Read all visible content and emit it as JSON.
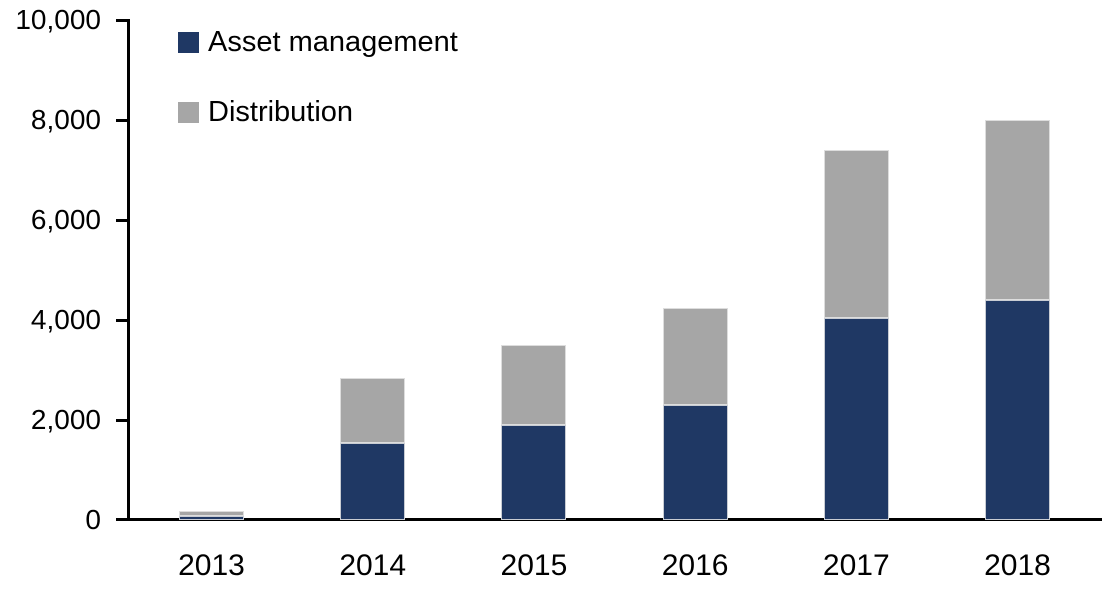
{
  "chart_data": {
    "type": "bar",
    "stacked": true,
    "title": "",
    "xlabel": "",
    "ylabel": "",
    "categories": [
      "2013",
      "2014",
      "2015",
      "2016",
      "2017",
      "2018"
    ],
    "series": [
      {
        "name": "Asset management",
        "color": "#1F3864",
        "values": [
          90,
          1550,
          1900,
          2300,
          4050,
          4400
        ]
      },
      {
        "name": "Distribution",
        "color": "#A6A6A6",
        "values": [
          100,
          1300,
          1600,
          1950,
          3350,
          3600
        ]
      }
    ],
    "ylim": [
      0,
      10000
    ],
    "yticks": [
      0,
      2000,
      4000,
      6000,
      8000,
      10000
    ],
    "ytick_labels": [
      "0",
      "2,000",
      "4,000",
      "6,000",
      "8,000",
      "10,000"
    ],
    "grid": false,
    "legend_position": "top-left-inside",
    "axis_color": "#000000",
    "background_color": "#FFFFFF"
  }
}
